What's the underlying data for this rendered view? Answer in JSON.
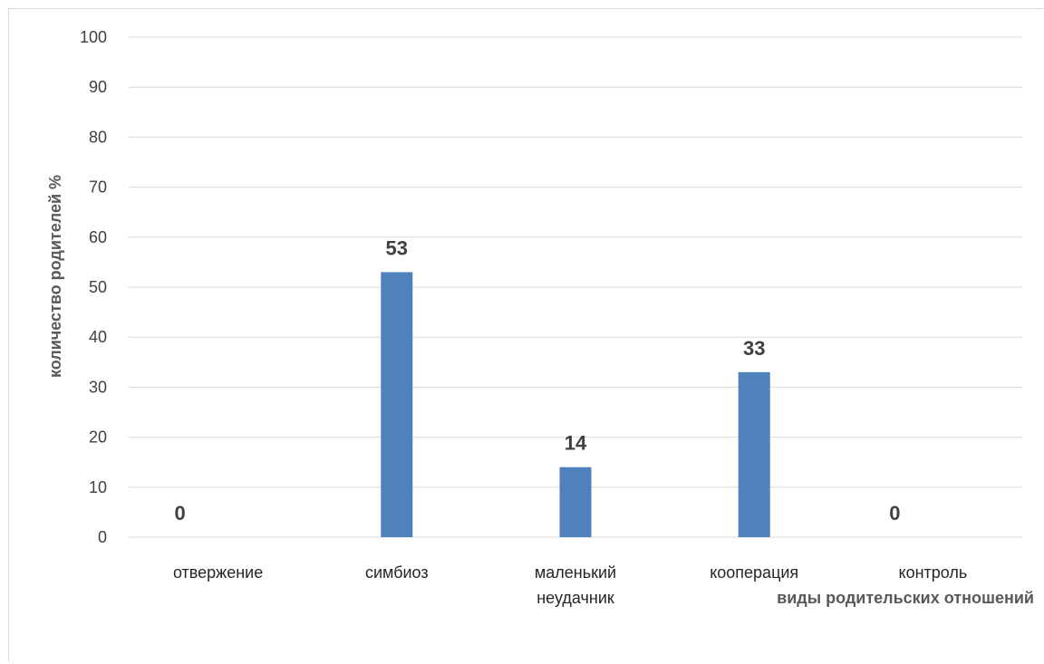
{
  "chart_data": {
    "type": "bar",
    "categories": [
      "отвержение",
      "симбиоз",
      "маленький неудачник",
      "кооперация",
      "контроль"
    ],
    "category_lines": [
      [
        "отвержение"
      ],
      [
        "симбиоз"
      ],
      [
        "маленький",
        "неудачник"
      ],
      [
        "кооперация"
      ],
      [
        "контроль"
      ]
    ],
    "values": [
      0,
      53,
      14,
      33,
      0
    ],
    "data_labels": [
      "0",
      "53",
      "14",
      "33",
      "0"
    ],
    "xlabel": "виды родительских отношений",
    "ylabel": "количество родителей %",
    "ylim": [
      0,
      100
    ],
    "yticks": [
      0,
      10,
      20,
      30,
      40,
      50,
      60,
      70,
      80,
      90,
      100
    ],
    "grid": true,
    "legend": "none",
    "bar_color": "#4F81BD",
    "grid_color": "#d9d9d9"
  }
}
